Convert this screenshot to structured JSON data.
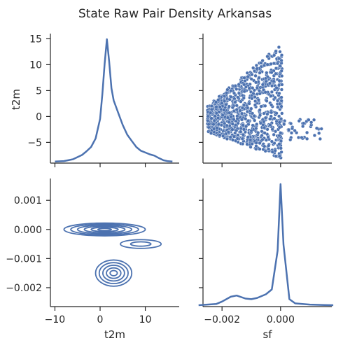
{
  "title": "State Raw Pair Density Arkansas",
  "chart_data": {
    "type": "pairgrid",
    "title": "State Raw Pair Density Arkansas",
    "variables": [
      "t2m",
      "sf"
    ],
    "color": "#4c72b0",
    "axes": {
      "t2m": {
        "label": "t2m",
        "range": [
          -11,
          17.5
        ],
        "ticks": [
          -10,
          0,
          10
        ]
      },
      "sf": {
        "label": "sf",
        "range": [
          -0.00265,
          0.00175
        ],
        "ticks": [
          -0.002,
          0.0
        ],
        "tick_labels": [
          "−0.002",
          "0.000"
        ]
      },
      "t2m_y": {
        "label": "t2m",
        "range": [
          -9,
          16
        ],
        "ticks": [
          -5,
          0,
          5,
          10,
          15
        ],
        "tick_labels": [
          "−5",
          "0",
          "5",
          "10",
          "15"
        ]
      },
      "sf_y": {
        "label": "",
        "range": [
          -0.00265,
          0.00175
        ],
        "ticks": [
          -0.002,
          -0.001,
          0.0,
          0.001
        ],
        "tick_labels": [
          "−0.002",
          "−0.001",
          "0.000",
          "0.001"
        ]
      }
    },
    "panels": [
      {
        "name": "t2m-kde",
        "type": "kde-line",
        "x": [
          -10,
          -8,
          -6,
          -4,
          -3,
          -2,
          -1,
          0,
          0.5,
          1,
          1.5,
          2,
          2.5,
          3,
          4,
          5,
          6,
          7,
          8,
          9,
          10,
          11,
          12,
          13,
          14,
          15,
          16
        ],
        "density": [
          0.001,
          0.005,
          0.02,
          0.055,
          0.085,
          0.12,
          0.19,
          0.35,
          0.55,
          0.8,
          1.0,
          0.82,
          0.6,
          0.5,
          0.4,
          0.3,
          0.22,
          0.17,
          0.12,
          0.09,
          0.075,
          0.06,
          0.05,
          0.03,
          0.012,
          0.004,
          0.001
        ]
      },
      {
        "name": "t2m-vs-sf-scatter",
        "type": "scatter",
        "note_points": "dense cloud of points, t2m from -8 to 15 and sf from -0.0025 to 0.0011"
      },
      {
        "name": "sf-vs-t2m-kde-contour",
        "type": "kde-contour",
        "clusters": [
          {
            "center_t2m": 1,
            "center_sf": 0.0,
            "levels": 6
          },
          {
            "center_t2m": 3,
            "center_sf": -0.0015,
            "levels": 5
          },
          {
            "center_t2m": 9,
            "center_sf": -0.0005,
            "levels": 2
          }
        ]
      },
      {
        "name": "sf-kde",
        "type": "kde-line",
        "x": [
          -0.0028,
          -0.0022,
          -0.002,
          -0.0017,
          -0.0015,
          -0.0012,
          -0.001,
          -0.0008,
          -0.0005,
          -0.0003,
          -0.0001,
          0.0,
          0.0001,
          0.0003,
          0.0005,
          0.001,
          0.0015,
          0.0018
        ],
        "density": [
          0.0,
          0.01,
          0.03,
          0.07,
          0.08,
          0.055,
          0.05,
          0.06,
          0.09,
          0.13,
          0.45,
          1.0,
          0.5,
          0.05,
          0.015,
          0.005,
          0.002,
          0.0
        ]
      }
    ]
  }
}
